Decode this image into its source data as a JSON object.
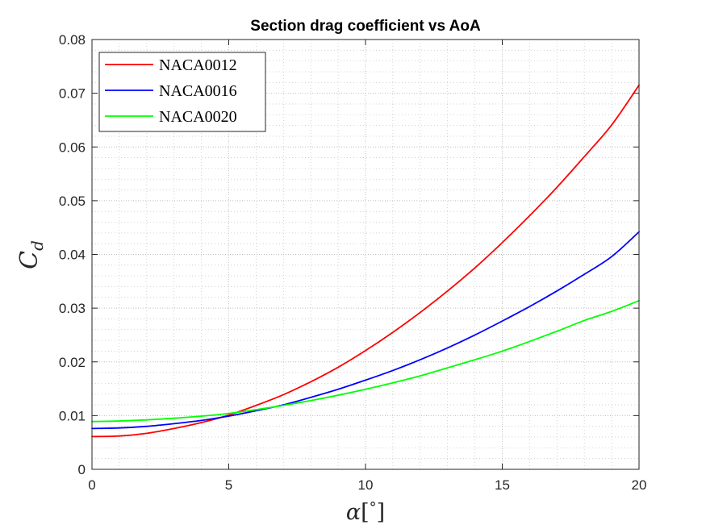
{
  "chart_data": {
    "type": "line",
    "title": "Section drag coefficient vs AoA",
    "xlabel": {
      "main": "α",
      "bracket_open": "[",
      "unit": "°",
      "bracket_close": "]"
    },
    "ylabel": {
      "main": "C",
      "sub": "d"
    },
    "xlim": [
      0,
      20
    ],
    "ylim": [
      0,
      0.08
    ],
    "xticks": [
      0,
      5,
      10,
      15,
      20
    ],
    "xtick_labels": [
      "0",
      "5",
      "10",
      "15",
      "20"
    ],
    "yticks": [
      0,
      0.01,
      0.02,
      0.03,
      0.04,
      0.05,
      0.06,
      0.07,
      0.08
    ],
    "ytick_labels": [
      "0",
      "0.01",
      "0.02",
      "0.03",
      "0.04",
      "0.05",
      "0.06",
      "0.07",
      "0.08"
    ],
    "grid": "major and minor (dotted)",
    "legend_position": "top-left",
    "x": [
      0,
      1,
      2,
      3,
      4,
      5,
      6,
      7,
      8,
      9,
      10,
      11,
      12,
      13,
      14,
      15,
      16,
      17,
      18,
      19,
      20
    ],
    "series": [
      {
        "name": "NACA0012",
        "color": "#ff0000",
        "values": [
          0.0061,
          0.0062,
          0.0067,
          0.0076,
          0.0087,
          0.0101,
          0.0119,
          0.0139,
          0.0163,
          0.019,
          0.0221,
          0.0255,
          0.0292,
          0.0332,
          0.0375,
          0.0422,
          0.0472,
          0.0525,
          0.0582,
          0.0641,
          0.0715
        ]
      },
      {
        "name": "NACA0016",
        "color": "#0000ff",
        "values": [
          0.0076,
          0.0077,
          0.008,
          0.0085,
          0.0091,
          0.0099,
          0.0109,
          0.012,
          0.0134,
          0.0149,
          0.0166,
          0.0184,
          0.0204,
          0.0226,
          0.025,
          0.0276,
          0.0303,
          0.0332,
          0.0363,
          0.0396,
          0.0442
        ]
      },
      {
        "name": "NACA0020",
        "color": "#00ff00",
        "values": [
          0.0089,
          0.009,
          0.0092,
          0.0095,
          0.0099,
          0.0104,
          0.0111,
          0.0119,
          0.0128,
          0.0138,
          0.0149,
          0.0161,
          0.0174,
          0.0189,
          0.0204,
          0.022,
          0.0238,
          0.0257,
          0.0277,
          0.0294,
          0.0314
        ]
      }
    ]
  }
}
